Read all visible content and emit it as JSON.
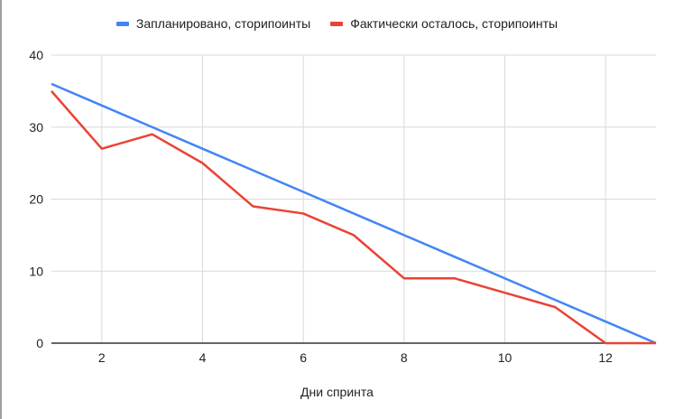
{
  "chart_data": {
    "type": "line",
    "title": "",
    "xlabel": "Дни спринта",
    "ylabel": "",
    "x": [
      1,
      2,
      3,
      4,
      5,
      6,
      7,
      8,
      9,
      10,
      11,
      12,
      13
    ],
    "x_ticks": [
      "2",
      "4",
      "6",
      "8",
      "10",
      "12"
    ],
    "y_ticks": [
      "0",
      "10",
      "20",
      "30",
      "40"
    ],
    "xlim": [
      1,
      13
    ],
    "ylim": [
      0,
      40
    ],
    "grid": true,
    "legend_position": "top",
    "series": [
      {
        "name": "Запланировано, сторипоинты",
        "color": "#4285f4",
        "values": [
          36,
          33,
          30,
          27,
          24,
          21,
          18,
          15,
          12,
          9,
          6,
          3,
          0
        ]
      },
      {
        "name": "Фактически осталось, сторипоинты",
        "color": "#ea4335",
        "values": [
          35,
          27,
          29,
          25,
          19,
          18,
          15,
          9,
          9,
          7,
          5,
          0,
          0
        ]
      }
    ]
  }
}
